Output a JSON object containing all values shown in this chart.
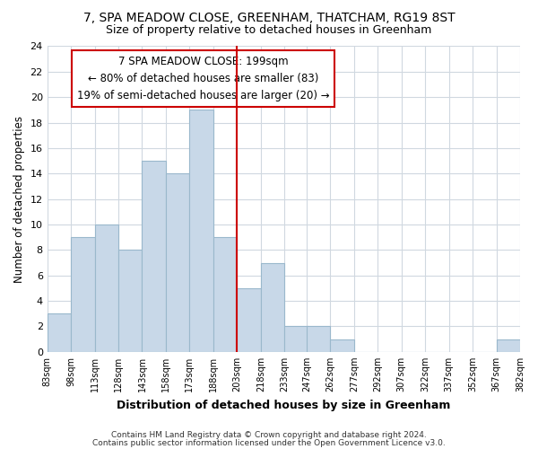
{
  "title": "7, SPA MEADOW CLOSE, GREENHAM, THATCHAM, RG19 8ST",
  "subtitle": "Size of property relative to detached houses in Greenham",
  "xlabel": "Distribution of detached houses by size in Greenham",
  "ylabel": "Number of detached properties",
  "bar_color": "#c8d8e8",
  "bar_edge_color": "#9ab8cc",
  "vline_x": 203,
  "vline_color": "#cc0000",
  "bins": [
    83,
    98,
    113,
    128,
    143,
    158,
    173,
    188,
    203,
    218,
    233,
    247,
    262,
    277,
    292,
    307,
    322,
    337,
    352,
    367,
    382
  ],
  "counts": [
    3,
    9,
    10,
    8,
    15,
    14,
    19,
    9,
    5,
    7,
    2,
    2,
    1,
    0,
    0,
    0,
    0,
    0,
    0,
    1
  ],
  "ylim": [
    0,
    24
  ],
  "yticks": [
    0,
    2,
    4,
    6,
    8,
    10,
    12,
    14,
    16,
    18,
    20,
    22,
    24
  ],
  "annotation_title": "7 SPA MEADOW CLOSE: 199sqm",
  "annotation_line1": "← 80% of detached houses are smaller (83)",
  "annotation_line2": "19% of semi-detached houses are larger (20) →",
  "footer_line1": "Contains HM Land Registry data © Crown copyright and database right 2024.",
  "footer_line2": "Contains public sector information licensed under the Open Government Licence v3.0.",
  "grid_color": "#d0d8e0",
  "background_color": "#ffffff"
}
